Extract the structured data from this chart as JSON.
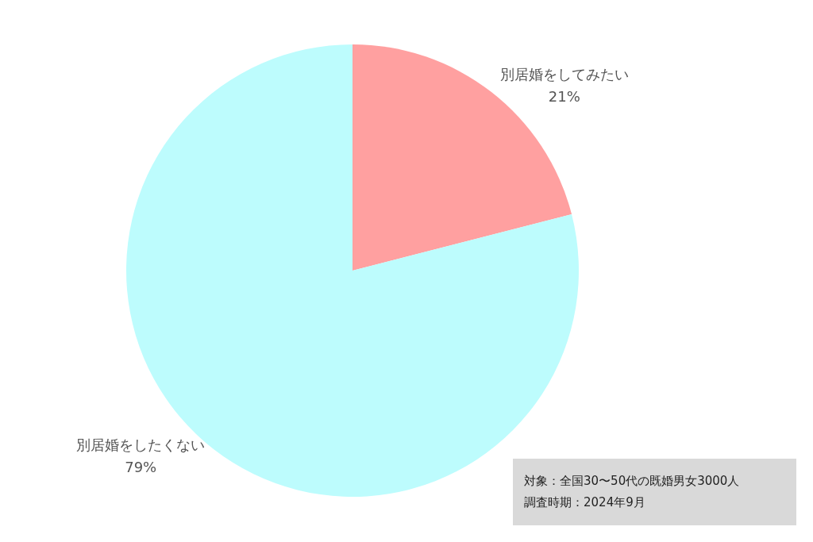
{
  "chart_data": {
    "type": "pie",
    "categories": [
      "別居婚をしてみたい",
      "別居婚をしたくない"
    ],
    "values": [
      21,
      79
    ],
    "value_labels": [
      "21%",
      "79%"
    ],
    "colors": [
      "#ffa0a0",
      "#bdfcfd"
    ],
    "legend": false,
    "annotations": [
      "対象：全国30〜50代の既婚男女3000人",
      "調査時期：2024年9月"
    ]
  }
}
